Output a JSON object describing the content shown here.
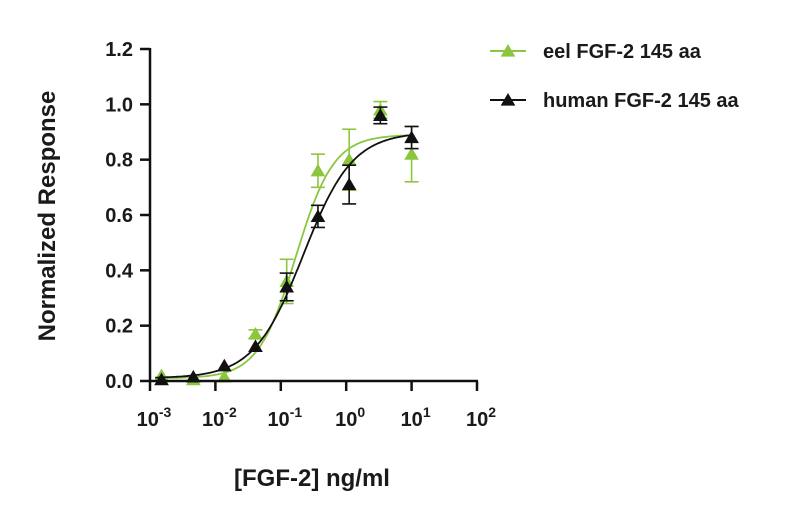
{
  "chart_data": {
    "type": "scatter",
    "title": "",
    "xlabel": "[FGF-2] ng/ml",
    "ylabel": "Normalized Response",
    "x_scale": "log",
    "xlim": [
      0.001,
      100
    ],
    "ylim": [
      0,
      1.2
    ],
    "x_ticks": [
      {
        "value": 0.001,
        "base": "10",
        "exp": "-3"
      },
      {
        "value": 0.01,
        "base": "10",
        "exp": "-2"
      },
      {
        "value": 0.1,
        "base": "10",
        "exp": "-1"
      },
      {
        "value": 1,
        "base": "10",
        "exp": "0"
      },
      {
        "value": 10,
        "base": "10",
        "exp": "1"
      },
      {
        "value": 100,
        "base": "10",
        "exp": "2"
      }
    ],
    "y_ticks": [
      "0.0",
      "0.2",
      "0.4",
      "0.6",
      "0.8",
      "1.0",
      "1.2"
    ],
    "grid": false,
    "legend_position": "top-right",
    "series": [
      {
        "name": "eel FGF-2 145 aa",
        "color": "#8cc63f",
        "marker": "triangle",
        "x": [
          0.0015,
          0.0046,
          0.0137,
          0.041,
          0.123,
          0.37,
          1.11,
          3.33,
          10
        ],
        "y": [
          0.02,
          0.005,
          0.015,
          0.17,
          0.36,
          0.76,
          0.8,
          0.98,
          0.82
        ],
        "err": [
          0.01,
          0.01,
          0.01,
          0.015,
          0.08,
          0.06,
          0.11,
          0.03,
          0.1
        ],
        "fit": {
          "bottom": 0.01,
          "top": 0.89,
          "ec50": 0.17,
          "hill": 1.5
        }
      },
      {
        "name": "human FGF-2 145 aa",
        "color": "#111111",
        "marker": "triangle",
        "x": [
          0.0015,
          0.0046,
          0.0137,
          0.041,
          0.123,
          0.37,
          1.11,
          3.33,
          10
        ],
        "y": [
          0.005,
          0.015,
          0.055,
          0.125,
          0.34,
          0.595,
          0.71,
          0.96,
          0.88
        ],
        "err": [
          0.005,
          0.01,
          0.01,
          0.01,
          0.05,
          0.04,
          0.07,
          0.03,
          0.04
        ],
        "fit": {
          "bottom": 0.01,
          "top": 0.9,
          "ec50": 0.22,
          "hill": 1.15
        }
      }
    ]
  }
}
